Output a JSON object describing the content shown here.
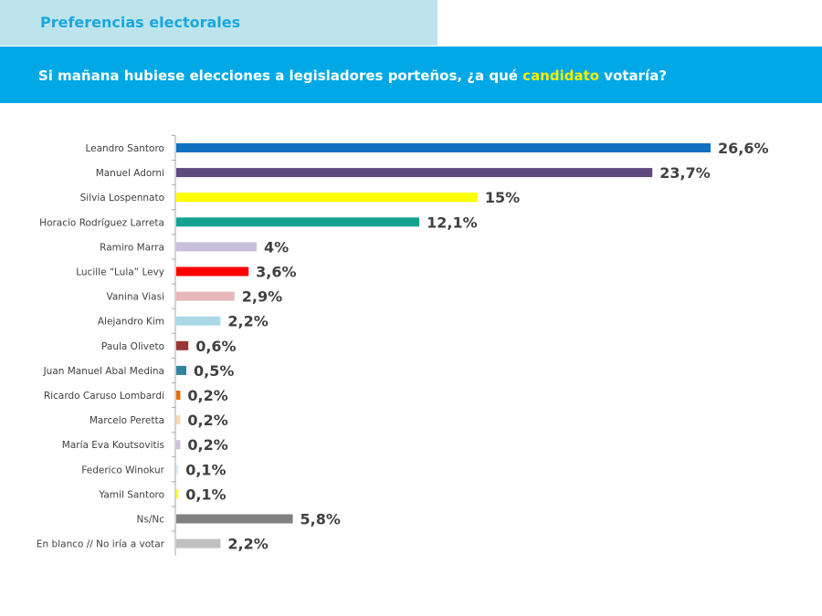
{
  "header": {
    "tab_title": "Preferencias electorales",
    "question_before": "Si mañana hubiese elecciones a legisladores porteños, ¿a qué ",
    "question_highlight": "candidato",
    "question_after": " votaría?"
  },
  "colors": {
    "tab_bg": "#bde3ec",
    "tab_text": "#1aa7df",
    "banner_bg": "#00a9e6",
    "highlight": "#f5f000"
  },
  "chart_data": {
    "type": "bar",
    "orientation": "horizontal",
    "title": "",
    "xlabel": "",
    "ylabel": "",
    "xlim": [
      0,
      26.6
    ],
    "grid": false,
    "legend": "none",
    "categories": [
      "Leandro Santoro",
      "Manuel Adorni",
      "Silvia Lospennato",
      "Horacio Rodríguez Larreta",
      "Ramiro Marra",
      "Lucille “Lula” Levy",
      "Vanina Viasi",
      "Alejandro Kim",
      "Paula Oliveto",
      "Juan Manuel Abal Medina",
      "Ricardo Caruso Lombardi",
      "Marcelo Peretta",
      "María Eva Koutsovitis",
      "Federico Winokur",
      "Yamil Santoro",
      "Ns/Nc",
      "En blanco // No iría a votar"
    ],
    "values": [
      26.6,
      23.7,
      15,
      12.1,
      4,
      3.6,
      2.9,
      2.2,
      0.6,
      0.5,
      0.2,
      0.2,
      0.2,
      0.1,
      0.1,
      5.8,
      2.2
    ],
    "value_labels": [
      "26,6%",
      "23,7%",
      "15%",
      "12,1%",
      "4%",
      "3,6%",
      "2,9%",
      "2,2%",
      "0,6%",
      "0,5%",
      "0,2%",
      "0,2%",
      "0,2%",
      "0,1%",
      "0,1%",
      "5,8%",
      "2,2%"
    ],
    "bar_colors": [
      "#1270c0",
      "#5e4a7e",
      "#ffff00",
      "#13a38f",
      "#c9bfdc",
      "#ff0000",
      "#e6b8b9",
      "#aad9e6",
      "#953735",
      "#31849b",
      "#e46c0a",
      "#fbd5b5",
      "#ccc1da",
      "#dbeef4",
      "#ffff00",
      "#808080",
      "#c0c0c0"
    ]
  }
}
